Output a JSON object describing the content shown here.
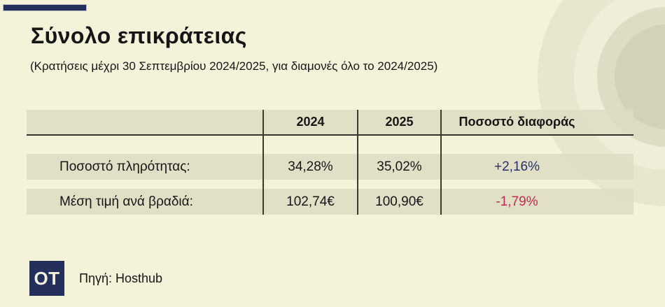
{
  "title": "Σύνολο επικράτειας",
  "subtitle": "(Κρατήσεις μέχρι 30 Σεπτεμβρίου 2024/2025, για διαμονές όλο το 2024/2025)",
  "table": {
    "columns": [
      "",
      "2024",
      "2025",
      "Ποσοστό διαφοράς"
    ],
    "rows": [
      {
        "label": "Ποσοστό πληρότητας:",
        "value_2024": "34,28%",
        "value_2025": "35,02%",
        "diff": "+2,16%",
        "diff_status": "positive"
      },
      {
        "label": "Μέση τιμή ανά βραδιά:",
        "value_2024": "102,74€",
        "value_2025": "100,90€",
        "diff": "-1,79%",
        "diff_status": "negative"
      }
    ]
  },
  "footer": {
    "logo_text": "OT",
    "source_label": "Πηγή: Hosthub"
  },
  "colors": {
    "background": "#f4f2d8",
    "band": "#e1dfc7",
    "accent_navy": "#242f5c",
    "positive": "#28316e",
    "negative": "#c22b50",
    "line": "#33332b"
  },
  "chart_data": {
    "type": "table",
    "title": "Σύνολο επικράτειας",
    "subtitle": "(Κρατήσεις μέχρι 30 Σεπτεμβρίου 2024/2025, για διαμονές όλο το 2024/2025)",
    "columns": [
      "",
      "2024",
      "2025",
      "Ποσοστό διαφοράς"
    ],
    "rows": [
      [
        "Ποσοστό πληρότητας:",
        "34,28%",
        "35,02%",
        "+2,16%"
      ],
      [
        "Μέση τιμή ανά βραδιά:",
        "102,74€",
        "100,90€",
        "-1,79%"
      ]
    ],
    "occupancy_rate": {
      "2024": 34.28,
      "2025": 35.02,
      "diff_pct": 2.16
    },
    "avg_price_per_night_eur": {
      "2024": 102.74,
      "2025": 100.9,
      "diff_pct": -1.79
    },
    "source": "Hosthub"
  }
}
